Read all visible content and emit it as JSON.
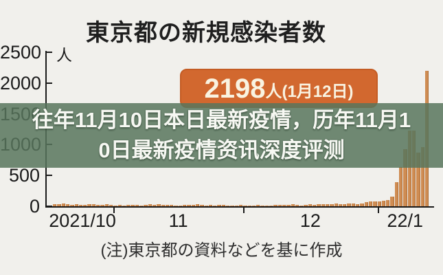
{
  "title": "東京都の新規感染者数",
  "unit_label": "人",
  "annotation": {
    "value": "2198",
    "suffix": "人(1月12日)"
  },
  "overlay": {
    "line1": "往年11月10日本日最新疫情，历年11月1",
    "line2": "0日最新疫情资讯深度评测"
  },
  "footer_note": "(注)東京都の資料などを基に作成",
  "colors": {
    "background": "#f1f0ec",
    "bar": "#cf8c52",
    "annotation_box": "#d2682f",
    "annotation_text": "#f9f3e1",
    "overlay_band": "rgba(88,118,93,0.85)",
    "overlay_text": "#f7f8f3",
    "axis": "#1a1a1a"
  },
  "chart_data": {
    "type": "bar",
    "title": "東京都の新規感染者数",
    "ylabel": "人",
    "ylim": [
      0,
      2500
    ],
    "yticks": [
      0,
      500,
      1000,
      1500,
      2000,
      2500
    ],
    "x_start_date": "2021/10/18",
    "x_end_date": "2022/01/12",
    "xtick_labels": [
      "2021/10",
      "11",
      "12",
      "22/1"
    ],
    "month_boundary_indices": [
      14,
      44,
      75
    ],
    "values": [
      29,
      36,
      41,
      36,
      26,
      32,
      19,
      17,
      36,
      36,
      21,
      24,
      32,
      22,
      9,
      18,
      14,
      21,
      25,
      21,
      16,
      18,
      31,
      26,
      31,
      27,
      24,
      22,
      7,
      15,
      20,
      27,
      21,
      31,
      20,
      6,
      17,
      5,
      27,
      19,
      14,
      9,
      8,
      21,
      8,
      12,
      11,
      20,
      13,
      16,
      12,
      17,
      25,
      22,
      20,
      33,
      17,
      12,
      19,
      30,
      25,
      38,
      33,
      39,
      38,
      40,
      37,
      39,
      41,
      45,
      38,
      46,
      64,
      76,
      78,
      79,
      84,
      103,
      151,
      390,
      641,
      922,
      1224,
      1223,
      871,
      962,
      2198
    ],
    "peak_annotation": "2198人(1月12日)",
    "grid": false,
    "legend": false,
    "source_note": "(注)東京都の資料などを基に作成"
  }
}
